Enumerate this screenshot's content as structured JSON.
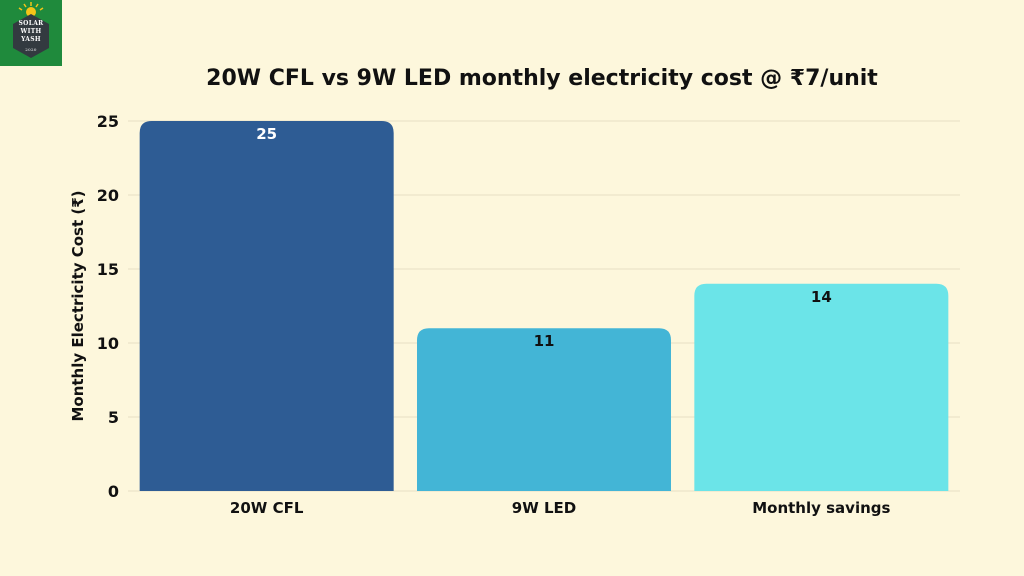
{
  "logo": {
    "line1": "SOLAR",
    "line2": "WITH",
    "line3": "YASH",
    "line4": "2020"
  },
  "chart_data": {
    "type": "bar",
    "title": "20W CFL vs 9W LED monthly electricity cost @ ₹7/unit",
    "xlabel": "",
    "ylabel": "Monthly Electricity Cost (₹)",
    "ylim": [
      0,
      25
    ],
    "yticks": [
      0,
      5,
      10,
      15,
      20,
      25
    ],
    "grid": true,
    "categories": [
      "20W CFL",
      "9W LED",
      "Monthly savings"
    ],
    "values": [
      25,
      11,
      14
    ],
    "colors": [
      "#2e5c94",
      "#43b5d6",
      "#6be4e8"
    ],
    "label_colors": [
      "#ffffff",
      "#111111",
      "#111111"
    ]
  }
}
